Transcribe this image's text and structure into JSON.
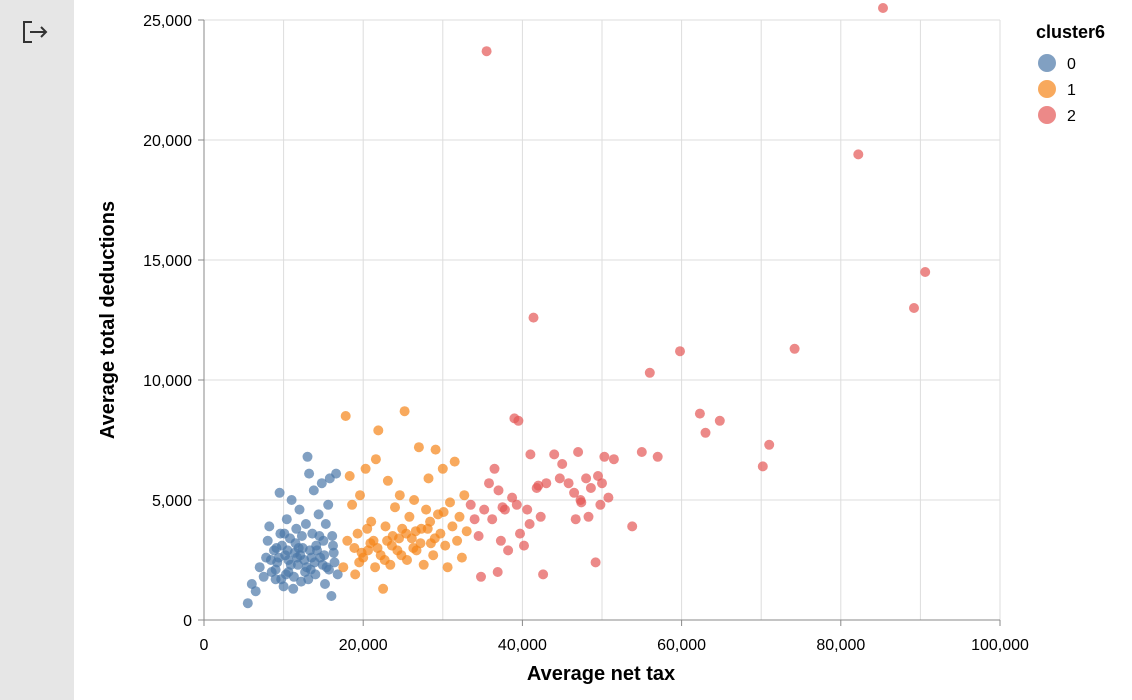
{
  "toolbar": {
    "exit_icon": "exit-icon"
  },
  "chart_data": {
    "type": "scatter",
    "xlabel": "Average net tax",
    "ylabel": "Average total deductions",
    "xlim": [
      0,
      100000
    ],
    "ylim": [
      0,
      25000
    ],
    "x_ticks": [
      "0",
      "20,000",
      "40,000",
      "60,000",
      "80,000",
      "100,000"
    ],
    "y_ticks": [
      "0",
      "5,000",
      "10,000",
      "15,000",
      "20,000",
      "25,000"
    ],
    "grid": true,
    "legend": {
      "title": "cluster6",
      "placement": "top-right",
      "entries": [
        "0",
        "1",
        "2"
      ]
    },
    "colors": {
      "0": "#4c78a8",
      "1": "#f58518",
      "2": "#e45756"
    },
    "series": [
      {
        "name": "0",
        "points": [
          [
            5500,
            700
          ],
          [
            6000,
            1500
          ],
          [
            6500,
            1200
          ],
          [
            7000,
            2200
          ],
          [
            7500,
            1800
          ],
          [
            7800,
            2600
          ],
          [
            8000,
            3300
          ],
          [
            8200,
            3900
          ],
          [
            8500,
            2000
          ],
          [
            8800,
            2900
          ],
          [
            9000,
            1700
          ],
          [
            9200,
            2400
          ],
          [
            9500,
            5300
          ],
          [
            9600,
            3600
          ],
          [
            9800,
            3100
          ],
          [
            10000,
            1400
          ],
          [
            10200,
            2700
          ],
          [
            10400,
            4200
          ],
          [
            10600,
            2000
          ],
          [
            10800,
            3400
          ],
          [
            11000,
            5000
          ],
          [
            11200,
            1300
          ],
          [
            11400,
            2800
          ],
          [
            11600,
            3800
          ],
          [
            11800,
            2300
          ],
          [
            12000,
            4600
          ],
          [
            12200,
            1600
          ],
          [
            12400,
            3000
          ],
          [
            12600,
            2500
          ],
          [
            12800,
            4000
          ],
          [
            13000,
            6800
          ],
          [
            13200,
            6100
          ],
          [
            13400,
            2100
          ],
          [
            13600,
            3600
          ],
          [
            13800,
            5400
          ],
          [
            14000,
            1900
          ],
          [
            14200,
            2900
          ],
          [
            14400,
            4400
          ],
          [
            14600,
            2600
          ],
          [
            14800,
            5700
          ],
          [
            15000,
            3300
          ],
          [
            15200,
            1500
          ],
          [
            15400,
            2200
          ],
          [
            15600,
            4800
          ],
          [
            15800,
            5900
          ],
          [
            16000,
            1000
          ],
          [
            16200,
            3100
          ],
          [
            16400,
            2400
          ],
          [
            16600,
            6100
          ],
          [
            16800,
            1900
          ],
          [
            9000,
            2100
          ],
          [
            9400,
            2600
          ],
          [
            10300,
            1900
          ],
          [
            10900,
            2300
          ],
          [
            11500,
            3200
          ],
          [
            12100,
            2700
          ],
          [
            12700,
            2000
          ],
          [
            13300,
            2900
          ],
          [
            13900,
            2400
          ],
          [
            14500,
            3500
          ],
          [
            15100,
            2700
          ],
          [
            15700,
            2100
          ],
          [
            16300,
            2800
          ],
          [
            10100,
            3600
          ],
          [
            11300,
            1800
          ],
          [
            12300,
            3500
          ],
          [
            13100,
            1700
          ],
          [
            14100,
            3100
          ],
          [
            15300,
            4000
          ],
          [
            8400,
            2500
          ],
          [
            9100,
            3000
          ],
          [
            10600,
            2500
          ],
          [
            11900,
            3000
          ],
          [
            13500,
            2600
          ],
          [
            14900,
            2300
          ],
          [
            16100,
            3500
          ],
          [
            12900,
            2200
          ],
          [
            11700,
            2600
          ],
          [
            10500,
            2900
          ],
          [
            9700,
            1700
          ]
        ]
      },
      {
        "name": "1",
        "points": [
          [
            17500,
            2200
          ],
          [
            17800,
            8500
          ],
          [
            18000,
            3300
          ],
          [
            18300,
            6000
          ],
          [
            18600,
            4800
          ],
          [
            19000,
            1900
          ],
          [
            19300,
            3600
          ],
          [
            19600,
            5200
          ],
          [
            20000,
            2600
          ],
          [
            20300,
            6300
          ],
          [
            20600,
            2900
          ],
          [
            21000,
            4100
          ],
          [
            21300,
            3300
          ],
          [
            21600,
            6700
          ],
          [
            21900,
            7900
          ],
          [
            22200,
            2700
          ],
          [
            22500,
            1300
          ],
          [
            22800,
            3900
          ],
          [
            23100,
            5800
          ],
          [
            23400,
            2300
          ],
          [
            23700,
            3500
          ],
          [
            24000,
            4700
          ],
          [
            24300,
            2900
          ],
          [
            24600,
            5200
          ],
          [
            24900,
            3800
          ],
          [
            25200,
            8700
          ],
          [
            25500,
            2500
          ],
          [
            25800,
            4300
          ],
          [
            26100,
            3400
          ],
          [
            26400,
            5000
          ],
          [
            26700,
            2900
          ],
          [
            27000,
            7200
          ],
          [
            27300,
            3800
          ],
          [
            27600,
            2300
          ],
          [
            27900,
            4600
          ],
          [
            28200,
            5900
          ],
          [
            28500,
            3200
          ],
          [
            28800,
            2700
          ],
          [
            29100,
            7100
          ],
          [
            29400,
            4400
          ],
          [
            29700,
            3600
          ],
          [
            30000,
            6300
          ],
          [
            30300,
            3100
          ],
          [
            30600,
            2200
          ],
          [
            30900,
            4900
          ],
          [
            31200,
            3900
          ],
          [
            31500,
            6600
          ],
          [
            31800,
            3300
          ],
          [
            32100,
            4300
          ],
          [
            32400,
            2600
          ],
          [
            32700,
            5200
          ],
          [
            33000,
            3700
          ],
          [
            18900,
            3000
          ],
          [
            19800,
            2800
          ],
          [
            20900,
            3200
          ],
          [
            21800,
            3000
          ],
          [
            22700,
            2500
          ],
          [
            23600,
            3100
          ],
          [
            24500,
            3400
          ],
          [
            25400,
            3600
          ],
          [
            26300,
            3000
          ],
          [
            27200,
            3200
          ],
          [
            28100,
            3800
          ],
          [
            29000,
            3400
          ],
          [
            19500,
            2400
          ],
          [
            20500,
            3800
          ],
          [
            21500,
            2200
          ],
          [
            23000,
            3300
          ],
          [
            24800,
            2700
          ],
          [
            26600,
            3700
          ],
          [
            28400,
            4100
          ],
          [
            30100,
            4500
          ]
        ]
      },
      {
        "name": "2",
        "points": [
          [
            33500,
            4800
          ],
          [
            34000,
            4200
          ],
          [
            34500,
            3500
          ],
          [
            34800,
            1800
          ],
          [
            35200,
            4600
          ],
          [
            35500,
            23700
          ],
          [
            35800,
            5700
          ],
          [
            36200,
            4200
          ],
          [
            36500,
            6300
          ],
          [
            37000,
            5400
          ],
          [
            37300,
            3300
          ],
          [
            37800,
            4600
          ],
          [
            38200,
            2900
          ],
          [
            38700,
            5100
          ],
          [
            39000,
            8400
          ],
          [
            39300,
            4800
          ],
          [
            39700,
            3600
          ],
          [
            40200,
            3100
          ],
          [
            40600,
            4600
          ],
          [
            41000,
            6900
          ],
          [
            41400,
            12600
          ],
          [
            41800,
            5500
          ],
          [
            42300,
            4300
          ],
          [
            42600,
            1900
          ],
          [
            43000,
            5700
          ],
          [
            44000,
            6900
          ],
          [
            45000,
            6500
          ],
          [
            45800,
            5700
          ],
          [
            46500,
            5300
          ],
          [
            47000,
            7000
          ],
          [
            47400,
            4900
          ],
          [
            48000,
            5900
          ],
          [
            48600,
            5500
          ],
          [
            49200,
            2400
          ],
          [
            49800,
            4800
          ],
          [
            50300,
            6800
          ],
          [
            50800,
            5100
          ],
          [
            51500,
            6700
          ],
          [
            53800,
            3900
          ],
          [
            55000,
            7000
          ],
          [
            56000,
            10300
          ],
          [
            57000,
            6800
          ],
          [
            59800,
            11200
          ],
          [
            62300,
            8600
          ],
          [
            63000,
            7800
          ],
          [
            64800,
            8300
          ],
          [
            70200,
            6400
          ],
          [
            71000,
            7300
          ],
          [
            74200,
            11300
          ],
          [
            82200,
            19400
          ],
          [
            85300,
            25500
          ],
          [
            89200,
            13000
          ],
          [
            90600,
            14500
          ],
          [
            39500,
            8300
          ],
          [
            46700,
            4200
          ],
          [
            48300,
            4300
          ],
          [
            36900,
            2000
          ],
          [
            42000,
            5600
          ],
          [
            37500,
            4700
          ],
          [
            40900,
            4000
          ],
          [
            44700,
            5900
          ],
          [
            47300,
            5000
          ],
          [
            49500,
            6000
          ],
          [
            50000,
            5700
          ]
        ]
      }
    ]
  }
}
